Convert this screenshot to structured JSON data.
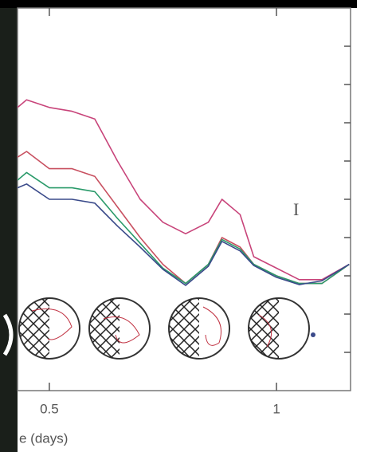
{
  "chart_data": {
    "type": "line",
    "x": [
      0.43,
      0.45,
      0.5,
      0.55,
      0.6,
      0.65,
      0.7,
      0.75,
      0.8,
      0.85,
      0.88,
      0.92,
      0.95,
      1.0,
      1.05,
      1.1,
      1.16
    ],
    "series": [
      {
        "color": "#c8447a",
        "values": [
          74,
          76,
          74,
          73,
          71,
          60,
          50,
          44,
          41,
          44,
          50,
          46,
          35,
          32,
          29,
          29,
          33
        ]
      },
      {
        "color": "#c85060",
        "values": [
          61,
          62.5,
          58,
          58,
          56,
          48,
          40,
          33,
          28,
          33,
          40,
          37.5,
          33,
          30,
          28,
          28,
          33
        ]
      },
      {
        "color": "#2a9a6a",
        "values": [
          55,
          57,
          53,
          53,
          52,
          45,
          38.5,
          32,
          28,
          33,
          39.5,
          37,
          33,
          30,
          28,
          28,
          33
        ]
      },
      {
        "color": "#3a4a8a",
        "values": [
          53,
          54,
          50,
          50,
          49,
          43,
          37.5,
          31.7,
          27.5,
          32.5,
          39,
          36.5,
          32.7,
          29.6,
          27.7,
          28.7,
          33
        ]
      }
    ],
    "xlim": [
      0.43,
      1.163
    ],
    "xticks": [
      0.5,
      1
    ],
    "ylim": [
      0,
      100
    ],
    "yticks": [
      10,
      20,
      30,
      40,
      50,
      60,
      70,
      80,
      90
    ],
    "xlabel": "e (days)",
    "annotation": "I"
  }
}
